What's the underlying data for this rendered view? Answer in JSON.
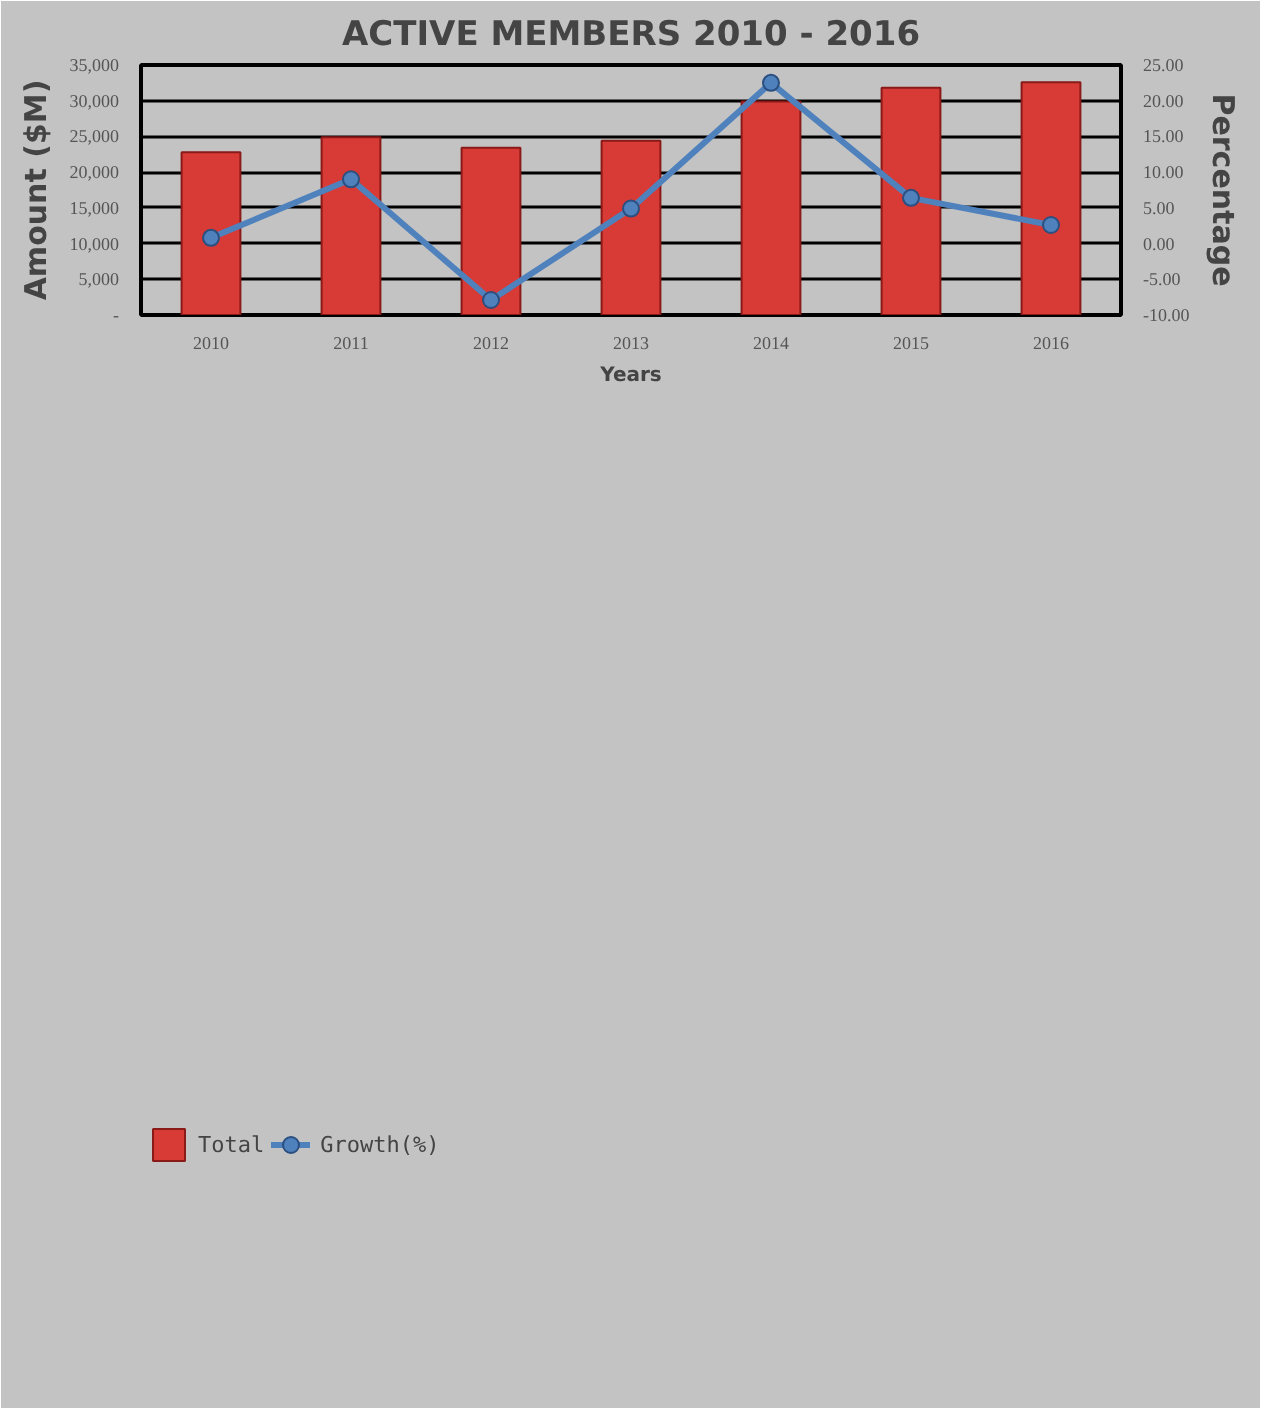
{
  "chart_data": {
    "type": "bar",
    "title": "ACTIVE MEMBERS 2010 - 2016",
    "xlabel": "Years",
    "ylabel": "Amount ($M)",
    "y2label": "Percentage",
    "categories": [
      "2010",
      "2011",
      "2012",
      "2013",
      "2014",
      "2015",
      "2016"
    ],
    "series": [
      {
        "name": "Total",
        "color": "#d83a35",
        "values": [
          22800,
          24900,
          23400,
          24400,
          29900,
          31800,
          32600
        ]
      },
      {
        "name": "Growth(%)",
        "type": "line",
        "axis": "y2",
        "color": "#4f81bd",
        "marker": "circle",
        "values": [
          0.8,
          9.0,
          -7.9,
          4.9,
          22.5,
          6.4,
          2.6
        ]
      }
    ],
    "ylim": [
      0,
      35000
    ],
    "yticks": [
      {
        "value": 0,
        "label": "-"
      },
      {
        "value": 5000,
        "label": "5,000"
      },
      {
        "value": 10000,
        "label": "10,000"
      },
      {
        "value": 15000,
        "label": "15,000"
      },
      {
        "value": 20000,
        "label": "20,000"
      },
      {
        "value": 25000,
        "label": "25,000"
      },
      {
        "value": 30000,
        "label": "30,000"
      },
      {
        "value": 35000,
        "label": "35,000"
      }
    ],
    "y2lim": [
      -10,
      25
    ],
    "y2ticks": [
      {
        "value": -10,
        "label": "-10.00"
      },
      {
        "value": -5,
        "label": "-5.00"
      },
      {
        "value": 0,
        "label": "0.00"
      },
      {
        "value": 5,
        "label": "5.00"
      },
      {
        "value": 10,
        "label": "10.00"
      },
      {
        "value": 15,
        "label": "15.00"
      },
      {
        "value": 20,
        "label": "20.00"
      },
      {
        "value": 25,
        "label": "25.00"
      }
    ],
    "grid": "y",
    "legend": "bottom left"
  }
}
